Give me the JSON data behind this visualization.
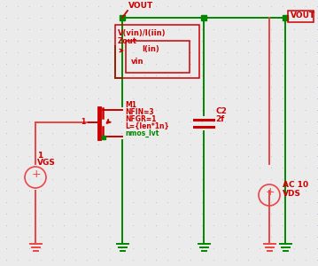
{
  "bg_color": "#ebebeb",
  "dot_color": "#b8b8c8",
  "green": "#008800",
  "red": "#cc0000",
  "pink": "#ee4444",
  "figsize": [
    3.59,
    3.0
  ],
  "dpi": 100,
  "vout_label_top": "VOUT",
  "vout_box_label": "VOUT",
  "probe_label1": "V(vin)/I(iin)",
  "probe_label2": "Zout",
  "probe_label3": "I(in)",
  "probe_label4": "vin",
  "mosfet_label1": "M1",
  "mosfet_label2": "NFIN=3",
  "mosfet_label3": "NFGR=1",
  "mosfet_label4": "L={len*1n}",
  "mosfet_label5": "nmos_lvt",
  "cap_label1": "C2",
  "cap_label2": "2f",
  "vgs_label1": "1",
  "vgs_label2": "VGS",
  "vds_label1": "AC 10",
  "vds_label2": "VDS"
}
